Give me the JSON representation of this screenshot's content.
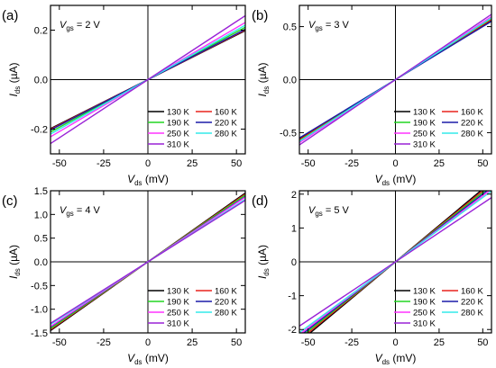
{
  "chart_data": [
    {
      "type": "line",
      "panel_label": "(a)",
      "gate_label": {
        "main": "V",
        "sub": "gs",
        "text": " = 2 V"
      },
      "xlabel": {
        "main": "V",
        "sub": "ds",
        "unit": " (mV)"
      },
      "ylabel": {
        "main": "I",
        "sub": "ds",
        "unit": " (µA)"
      },
      "xlim": [
        -55,
        55
      ],
      "ylim": [
        -0.3,
        0.3
      ],
      "xticks": [
        -50,
        -25,
        0,
        25,
        50
      ],
      "yticks": [
        -0.2,
        0.0,
        0.2
      ],
      "ytick_labels": [
        "-0.2",
        "0.0",
        "0.2"
      ],
      "series": [
        {
          "name": "130 K",
          "color": "#000000",
          "slope": 0.0036
        },
        {
          "name": "160 K",
          "color": "#e8231d",
          "slope": 0.00365
        },
        {
          "name": "190 K",
          "color": "#22d622",
          "slope": 0.00385
        },
        {
          "name": "220 K",
          "color": "#1c1ca8",
          "slope": 0.0037
        },
        {
          "name": "250 K",
          "color": "#ff33ff",
          "slope": 0.0042
        },
        {
          "name": "280 K",
          "color": "#33eaea",
          "slope": 0.004
        },
        {
          "name": "310 K",
          "color": "#9a22d6",
          "slope": 0.0047
        }
      ]
    },
    {
      "type": "line",
      "panel_label": "(b)",
      "gate_label": {
        "main": "V",
        "sub": "gs",
        "text": " = 3 V"
      },
      "xlabel": {
        "main": "V",
        "sub": "ds",
        "unit": " (mV)"
      },
      "ylabel": {
        "main": "I",
        "sub": "ds",
        "unit": " (µA)"
      },
      "xlim": [
        -55,
        55
      ],
      "ylim": [
        -0.7,
        0.7
      ],
      "xticks": [
        -50,
        -25,
        0,
        25,
        50
      ],
      "yticks": [
        -0.5,
        0.0,
        0.5
      ],
      "ytick_labels": [
        "-0.5",
        "0.0",
        "0.5"
      ],
      "series": [
        {
          "name": "130 K",
          "color": "#000000",
          "slope": 0.0102
        },
        {
          "name": "160 K",
          "color": "#e8231d",
          "slope": 0.0103
        },
        {
          "name": "190 K",
          "color": "#22d622",
          "slope": 0.0105
        },
        {
          "name": "220 K",
          "color": "#1c1ca8",
          "slope": 0.01
        },
        {
          "name": "250 K",
          "color": "#ff33ff",
          "slope": 0.0108
        },
        {
          "name": "280 K",
          "color": "#33eaea",
          "slope": 0.0106
        },
        {
          "name": "310 K",
          "color": "#9a22d6",
          "slope": 0.0112
        }
      ]
    },
    {
      "type": "line",
      "panel_label": "(c)",
      "gate_label": {
        "main": "V",
        "sub": "gs",
        "text": " = 4 V"
      },
      "xlabel": {
        "main": "V",
        "sub": "ds",
        "unit": " (mV)"
      },
      "ylabel": {
        "main": "I",
        "sub": "ds",
        "unit": " (µA)"
      },
      "xlim": [
        -55,
        55
      ],
      "ylim": [
        -1.5,
        1.5
      ],
      "xticks": [
        -50,
        -25,
        0,
        25,
        50
      ],
      "yticks": [
        -1.5,
        -1.0,
        -0.5,
        0.0,
        0.5,
        1.0,
        1.5
      ],
      "ytick_labels": [
        "-1.5",
        "-1.0",
        "-0.5",
        "0.0",
        "0.5",
        "1.0",
        "1.5"
      ],
      "series": [
        {
          "name": "130 K",
          "color": "#000000",
          "slope": 0.0264
        },
        {
          "name": "160 K",
          "color": "#e8231d",
          "slope": 0.026
        },
        {
          "name": "190 K",
          "color": "#22d622",
          "slope": 0.0256
        },
        {
          "name": "220 K",
          "color": "#1c1ca8",
          "slope": 0.025
        },
        {
          "name": "250 K",
          "color": "#ff33ff",
          "slope": 0.0248
        },
        {
          "name": "280 K",
          "color": "#33eaea",
          "slope": 0.024
        },
        {
          "name": "310 K",
          "color": "#9a22d6",
          "slope": 0.0236
        }
      ]
    },
    {
      "type": "line",
      "panel_label": "(d)",
      "gate_label": {
        "main": "V",
        "sub": "gs",
        "text": " = 5 V"
      },
      "xlabel": {
        "main": "V",
        "sub": "ds",
        "unit": " (mV)"
      },
      "ylabel": {
        "main": "I",
        "sub": "ds",
        "unit": " (µA)"
      },
      "xlim": [
        -55,
        55
      ],
      "ylim": [
        -2.1,
        2.1
      ],
      "xticks": [
        -50,
        -25,
        0,
        25,
        50
      ],
      "yticks": [
        -2,
        -1,
        0,
        1,
        2
      ],
      "ytick_labels": [
        "-2",
        "-1",
        "0",
        "1",
        "2"
      ],
      "series": [
        {
          "name": "130 K",
          "color": "#000000",
          "slope": 0.043
        },
        {
          "name": "160 K",
          "color": "#e8231d",
          "slope": 0.042
        },
        {
          "name": "190 K",
          "color": "#22d622",
          "slope": 0.041
        },
        {
          "name": "220 K",
          "color": "#1c1ca8",
          "slope": 0.04
        },
        {
          "name": "250 K",
          "color": "#ff33ff",
          "slope": 0.039
        },
        {
          "name": "280 K",
          "color": "#33eaea",
          "slope": 0.038
        },
        {
          "name": "310 K",
          "color": "#9a22d6",
          "slope": 0.0345
        }
      ]
    }
  ]
}
